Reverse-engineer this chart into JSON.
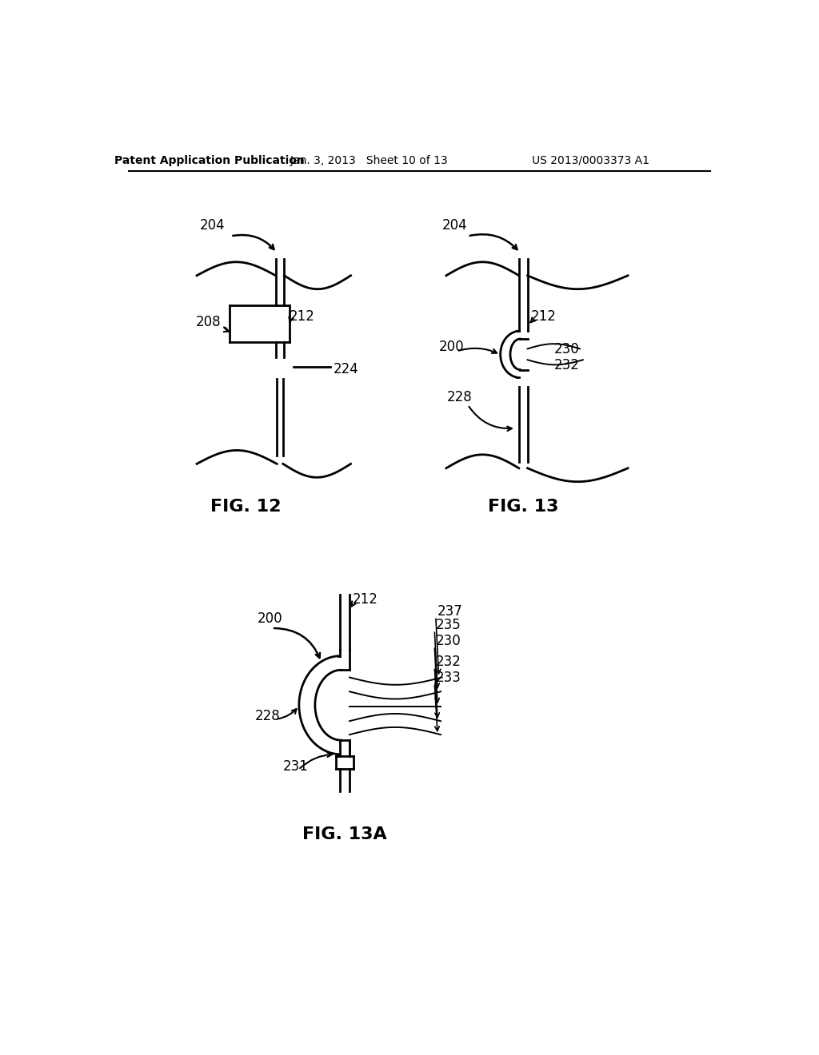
{
  "bg_color": "#ffffff",
  "line_color": "#000000",
  "header_left": "Patent Application Publication",
  "header_mid": "Jan. 3, 2013   Sheet 10 of 13",
  "header_right": "US 2013/0003373 A1",
  "fig12_label": "FIG. 12",
  "fig13_label": "FIG. 13",
  "fig13a_label": "FIG. 13A",
  "lw_main": 2.0,
  "lw_thin": 1.4
}
